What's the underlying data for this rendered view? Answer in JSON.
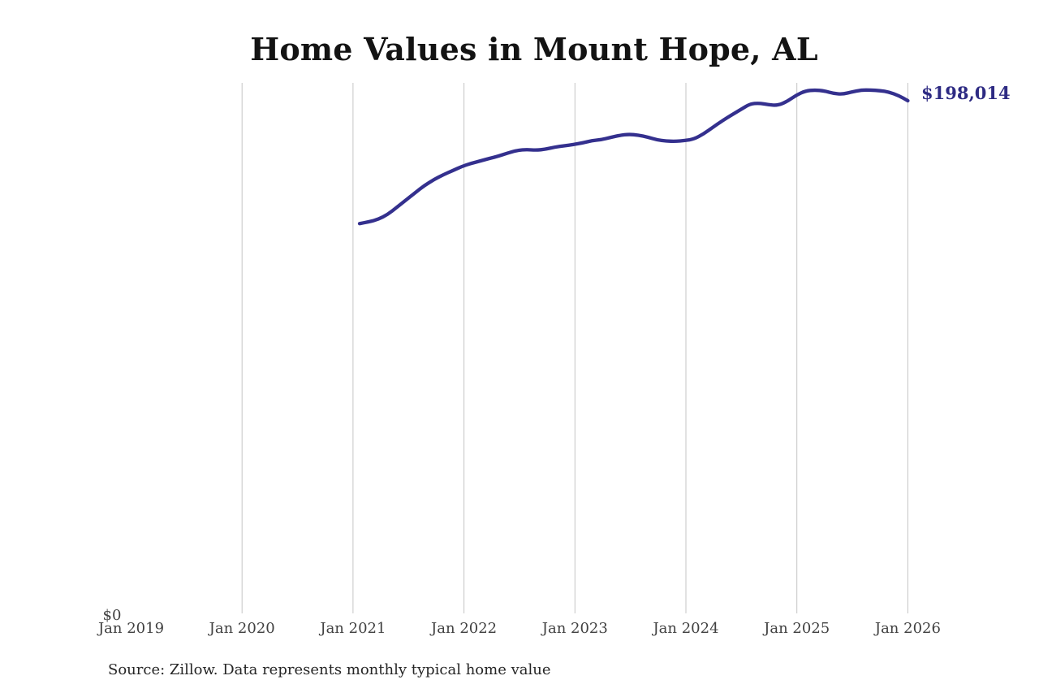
{
  "page": {
    "background": "#ffffff"
  },
  "chart_data": {
    "type": "line",
    "title": "Home Values in Mount Hope, AL",
    "source_note": "Source: Zillow. Data represents monthly typical home value",
    "end_label": "$198,014",
    "latest_value": 198014,
    "y_zero_label": "$0",
    "x_tick_labels": [
      "Jan 2019",
      "Jan 2020",
      "Jan 2021",
      "Jan 2022",
      "Jan 2023",
      "Jan 2024",
      "Jan 2025",
      "Jan 2026"
    ],
    "gridlines_at": [
      "Jan 2020",
      "Jan 2021",
      "Jan 2022",
      "Jan 2023",
      "Jan 2024",
      "Jan 2025",
      "Jan 2026"
    ],
    "x_range_displayed": [
      "Jan 2019",
      "Jan 2026"
    ],
    "y_axis": {
      "min": 0,
      "max_value_shown": 202100,
      "gridlines": "vertical-only"
    },
    "legend": "none",
    "series": [
      {
        "name": "Typical home value",
        "x_start": "Feb 2021",
        "x_end": "Jan 2026",
        "interval": "monthly",
        "values": [
          151100,
          151700,
          152700,
          154500,
          157300,
          160100,
          162900,
          165700,
          167900,
          169700,
          171300,
          172900,
          174100,
          175000,
          176000,
          176900,
          178100,
          179100,
          179400,
          179100,
          179500,
          180300,
          180800,
          181300,
          181900,
          182800,
          183100,
          184000,
          184800,
          185200,
          184900,
          184100,
          183100,
          182600,
          182500,
          182800,
          183400,
          185300,
          187800,
          190300,
          192500,
          194600,
          196800,
          197100,
          196500,
          196200,
          197700,
          200200,
          201800,
          202100,
          201800,
          200800,
          200500,
          201400,
          202100,
          202100,
          201900,
          201300,
          200000,
          198014
        ]
      }
    ],
    "colors": {
      "line": "#34308e",
      "end_label": "#2e2b83",
      "gridline": "#c4c4c4",
      "title": "#131313",
      "axis_label": "#414141",
      "source": "#262626",
      "background": "#ffffff"
    }
  }
}
